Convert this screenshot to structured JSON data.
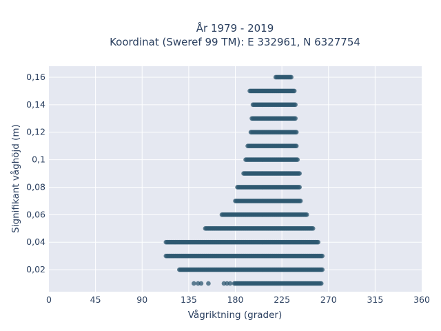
{
  "chart_data": {
    "type": "scatter",
    "title": "År 1979 - 2019",
    "subtitle": "Koordinat (Sweref 99 TM): E 332961, N 6327754",
    "xlabel": "Vågriktning (grader)",
    "ylabel": "Signifikant våghöjd (m)",
    "xlim": [
      0,
      360
    ],
    "ylim": [
      0.004,
      0.168
    ],
    "x_ticks": [
      0,
      45,
      90,
      135,
      180,
      225,
      270,
      315,
      360
    ],
    "x_tick_labels": [
      "0",
      "45",
      "90",
      "135",
      "180",
      "225",
      "270",
      "315",
      "360"
    ],
    "y_ticks": [
      0.02,
      0.04,
      0.06,
      0.08,
      0.1,
      0.12,
      0.14,
      0.16
    ],
    "y_tick_labels": [
      "0,02",
      "0,04",
      "0,06",
      "0,08",
      "0,1",
      "0,12",
      "0,14",
      "0,16"
    ],
    "grid": true,
    "marker_color": "#2e5870",
    "plot_background": "#e5e8f1",
    "series": [
      {
        "bands": [
          {
            "y": 0.01,
            "x_range": [
              179,
              263
            ],
            "isolated_x": [
              140,
              144,
              147,
              154,
              169,
              172,
              175
            ]
          },
          {
            "y": 0.02,
            "x_range": [
              126,
              264
            ]
          },
          {
            "y": 0.03,
            "x_range": [
              113,
              264
            ]
          },
          {
            "y": 0.04,
            "x_range": [
              113,
              260
            ]
          },
          {
            "y": 0.05,
            "x_range": [
              151,
              255
            ]
          },
          {
            "y": 0.06,
            "x_range": [
              167,
              249
            ]
          },
          {
            "y": 0.07,
            "x_range": [
              180,
              243
            ]
          },
          {
            "y": 0.08,
            "x_range": [
              182,
              242
            ]
          },
          {
            "y": 0.09,
            "x_range": [
              188,
              242
            ]
          },
          {
            "y": 0.1,
            "x_range": [
              190,
              240
            ]
          },
          {
            "y": 0.11,
            "x_range": [
              192,
              239
            ]
          },
          {
            "y": 0.12,
            "x_range": [
              195,
              239
            ]
          },
          {
            "y": 0.13,
            "x_range": [
              196,
              238
            ]
          },
          {
            "y": 0.14,
            "x_range": [
              197,
              238
            ]
          },
          {
            "y": 0.15,
            "x_range": [
              194,
              237
            ]
          },
          {
            "y": 0.16,
            "x_range": [
              219,
              234
            ]
          }
        ]
      }
    ]
  }
}
